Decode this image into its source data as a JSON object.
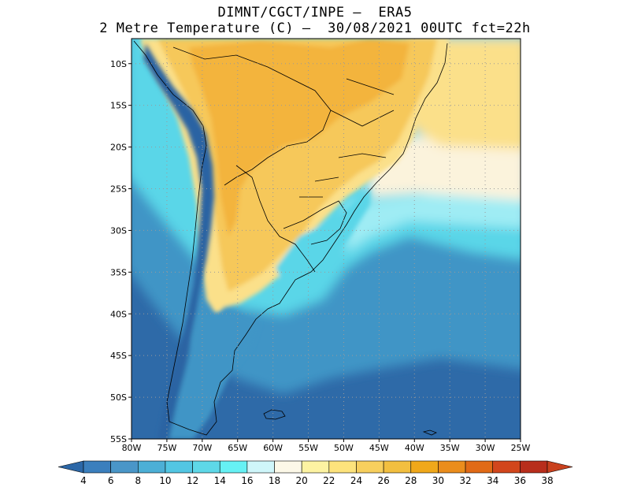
{
  "title_line1": "DIMNT/CGCT/INPE –  ERA5",
  "title_line2": "2 Metre Temperature (C) –  30/08/2021 00UTC fct=22h",
  "map": {
    "lon_range": [
      -80,
      -25
    ],
    "lat_range": [
      -55,
      -7
    ],
    "lat_ticks": [
      -10,
      -15,
      -20,
      -25,
      -30,
      -35,
      -40,
      -45,
      -50,
      -55
    ],
    "lat_labels": [
      "10S",
      "15S",
      "20S",
      "25S",
      "30S",
      "35S",
      "40S",
      "45S",
      "50S",
      "55S"
    ],
    "lon_ticks": [
      -80,
      -75,
      -70,
      -65,
      -60,
      -55,
      -50,
      -45,
      -40,
      -35,
      -30,
      -25
    ],
    "lon_labels": [
      "80W",
      "75W",
      "70W",
      "65W",
      "60W",
      "55W",
      "50W",
      "45W",
      "40W",
      "35W",
      "30W",
      "25W"
    ],
    "grid": "dotted"
  },
  "colorbar": {
    "labels": [
      "4",
      "6",
      "8",
      "10",
      "12",
      "14",
      "16",
      "18",
      "20",
      "22",
      "24",
      "26",
      "28",
      "30",
      "32",
      "34",
      "36",
      "38"
    ],
    "colors": [
      "#2c67a7",
      "#3b7fbd",
      "#4a96c8",
      "#4cafd6",
      "#52c6e3",
      "#5ed8e8",
      "#66f1f4",
      "#cff6fa",
      "#fcf8e8",
      "#fdf3a2",
      "#fde37c",
      "#f7cf5d",
      "#f2bf40",
      "#f0a81a",
      "#eb8d1c",
      "#e16a16",
      "#d2461c",
      "#b82e1c",
      "#c9411e"
    ]
  },
  "colors": {
    "ocean_south": "#2e6aa8",
    "ocean_mid": "#3f95c6",
    "ocean_cyan": "#5ad6e8",
    "ocean_light": "#9fecf4",
    "ocean_warm": "#fbf3dc",
    "land_hot": "#f3b43c",
    "land_warm": "#f6c85a",
    "land_mild": "#fbe08a",
    "andes": "#2b63a3"
  }
}
